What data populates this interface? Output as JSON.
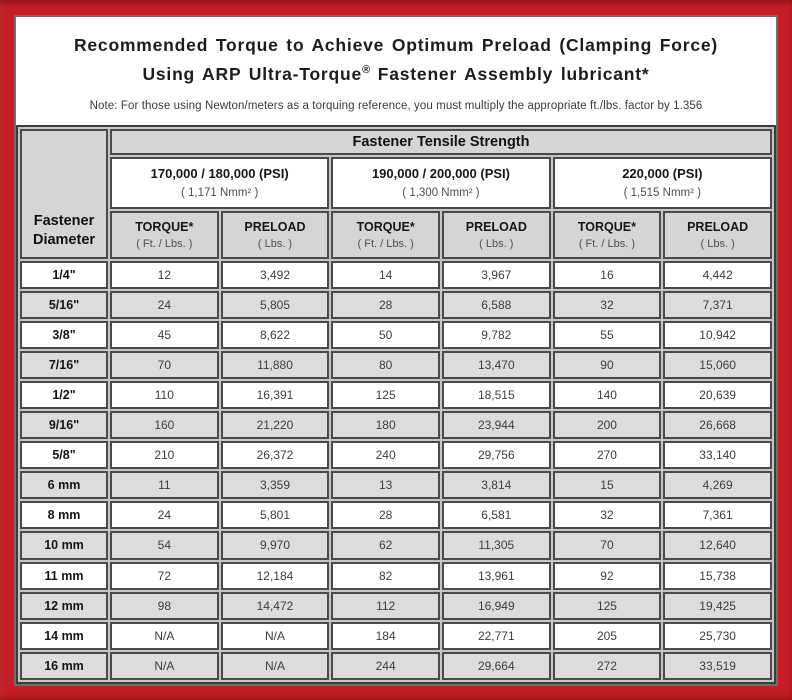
{
  "title": {
    "line1": "Recommended Torque to Achieve Optimum Preload (Clamping Force)",
    "line2_pre": "Using ARP Ultra-Torque",
    "line2_sup": "®",
    "line2_post": " Fastener Assembly lubricant*"
  },
  "note": "Note: For those using Newton/meters as a torquing reference, you must multiply the appropriate ft./lbs. factor by 1.356",
  "colors": {
    "frame_red": "#C41E24",
    "header_gray": "#D5D5D3",
    "alt_row_gray": "#DCDCDA",
    "border_dark": "#4a4a4a"
  },
  "table": {
    "corner_header": "Fastener Diameter",
    "tensile_header": "Fastener Tensile Strength",
    "groups": [
      {
        "psi": "170,000 / 180,000 (PSI)",
        "nmm": "( 1,171 Nmm² )"
      },
      {
        "psi": "190,000 / 200,000 (PSI)",
        "nmm": "( 1,300 Nmm² )"
      },
      {
        "psi": "220,000 (PSI)",
        "nmm": "( 1,515 Nmm² )"
      }
    ],
    "col_headers": [
      {
        "label": "TORQUE*",
        "sub": "( Ft. / Lbs. )"
      },
      {
        "label": "PRELOAD",
        "sub": "( Lbs. )"
      },
      {
        "label": "TORQUE*",
        "sub": "( Ft. / Lbs. )"
      },
      {
        "label": "PRELOAD",
        "sub": "( Lbs. )"
      },
      {
        "label": "TORQUE*",
        "sub": "( Ft. / Lbs. )"
      },
      {
        "label": "PRELOAD",
        "sub": "( Lbs. )"
      }
    ],
    "rows": [
      {
        "label": "1/4\"",
        "values": [
          "12",
          "3,492",
          "14",
          "3,967",
          "16",
          "4,442"
        ]
      },
      {
        "label": "5/16\"",
        "values": [
          "24",
          "5,805",
          "28",
          "6,588",
          "32",
          "7,371"
        ]
      },
      {
        "label": "3/8\"",
        "values": [
          "45",
          "8,622",
          "50",
          "9,782",
          "55",
          "10,942"
        ]
      },
      {
        "label": "7/16\"",
        "values": [
          "70",
          "11,880",
          "80",
          "13,470",
          "90",
          "15,060"
        ]
      },
      {
        "label": "1/2\"",
        "values": [
          "110",
          "16,391",
          "125",
          "18,515",
          "140",
          "20,639"
        ]
      },
      {
        "label": "9/16\"",
        "values": [
          "160",
          "21,220",
          "180",
          "23,944",
          "200",
          "26,668"
        ]
      },
      {
        "label": "5/8\"",
        "values": [
          "210",
          "26,372",
          "240",
          "29,756",
          "270",
          "33,140"
        ]
      },
      {
        "label": "6 mm",
        "values": [
          "11",
          "3,359",
          "13",
          "3,814",
          "15",
          "4,269"
        ]
      },
      {
        "label": "8 mm",
        "values": [
          "24",
          "5,801",
          "28",
          "6,581",
          "32",
          "7,361"
        ]
      },
      {
        "label": "10 mm",
        "values": [
          "54",
          "9,970",
          "62",
          "11,305",
          "70",
          "12,640"
        ]
      },
      {
        "label": "11 mm",
        "values": [
          "72",
          "12,184",
          "82",
          "13,961",
          "92",
          "15,738"
        ]
      },
      {
        "label": "12 mm",
        "values": [
          "98",
          "14,472",
          "112",
          "16,949",
          "125",
          "19,425"
        ]
      },
      {
        "label": "14 mm",
        "values": [
          "N/A",
          "N/A",
          "184",
          "22,771",
          "205",
          "25,730"
        ]
      },
      {
        "label": "16 mm",
        "values": [
          "N/A",
          "N/A",
          "244",
          "29,664",
          "272",
          "33,519"
        ]
      }
    ]
  }
}
